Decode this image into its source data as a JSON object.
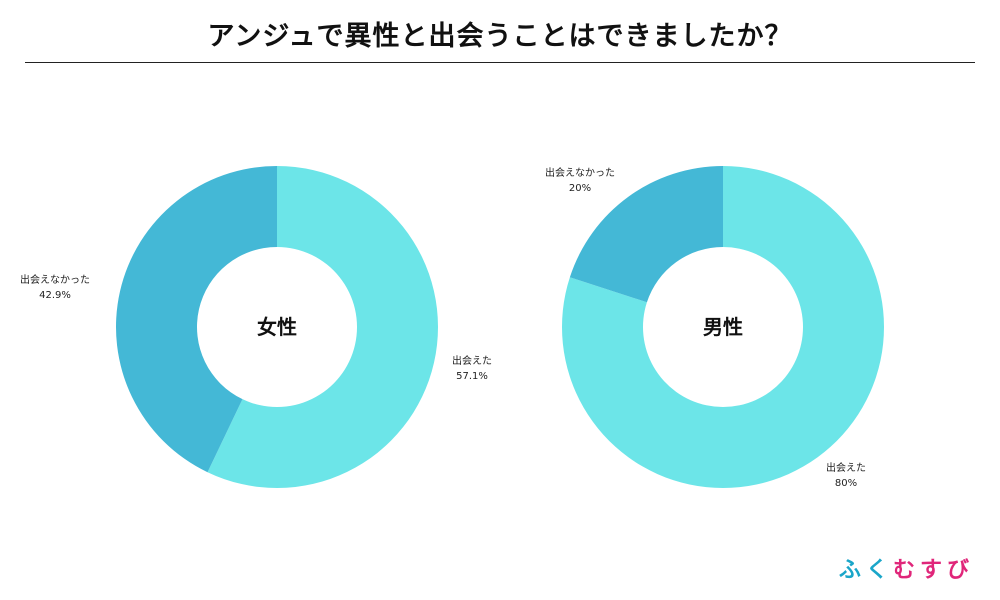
{
  "title": "アンジュで異性と出会うことはできましたか？",
  "colors": {
    "met": "#6ce5e8",
    "not_met": "#44b8d6"
  },
  "chart_data": [
    {
      "type": "pie",
      "center_label": "女性",
      "slices": [
        {
          "label": "出会えた",
          "value": 57.1,
          "value_label": "57.1%",
          "color": "#6ce5e8"
        },
        {
          "label": "出会えなかった",
          "value": 42.9,
          "value_label": "42.9%",
          "color": "#44b8d6"
        }
      ]
    },
    {
      "type": "pie",
      "center_label": "男性",
      "slices": [
        {
          "label": "出会えた",
          "value": 80,
          "value_label": "80%",
          "color": "#6ce5e8"
        },
        {
          "label": "出会えなかった",
          "value": 20,
          "value_label": "20%",
          "color": "#44b8d6"
        }
      ]
    }
  ],
  "logo": {
    "chars": [
      {
        "text": "ふ",
        "color": "#1aa6c9"
      },
      {
        "text": "く",
        "color": "#1aa6c9"
      },
      {
        "text": "む",
        "color": "#e0267a"
      },
      {
        "text": "す",
        "color": "#e0267a"
      },
      {
        "text": "び",
        "color": "#e0267a"
      }
    ]
  }
}
